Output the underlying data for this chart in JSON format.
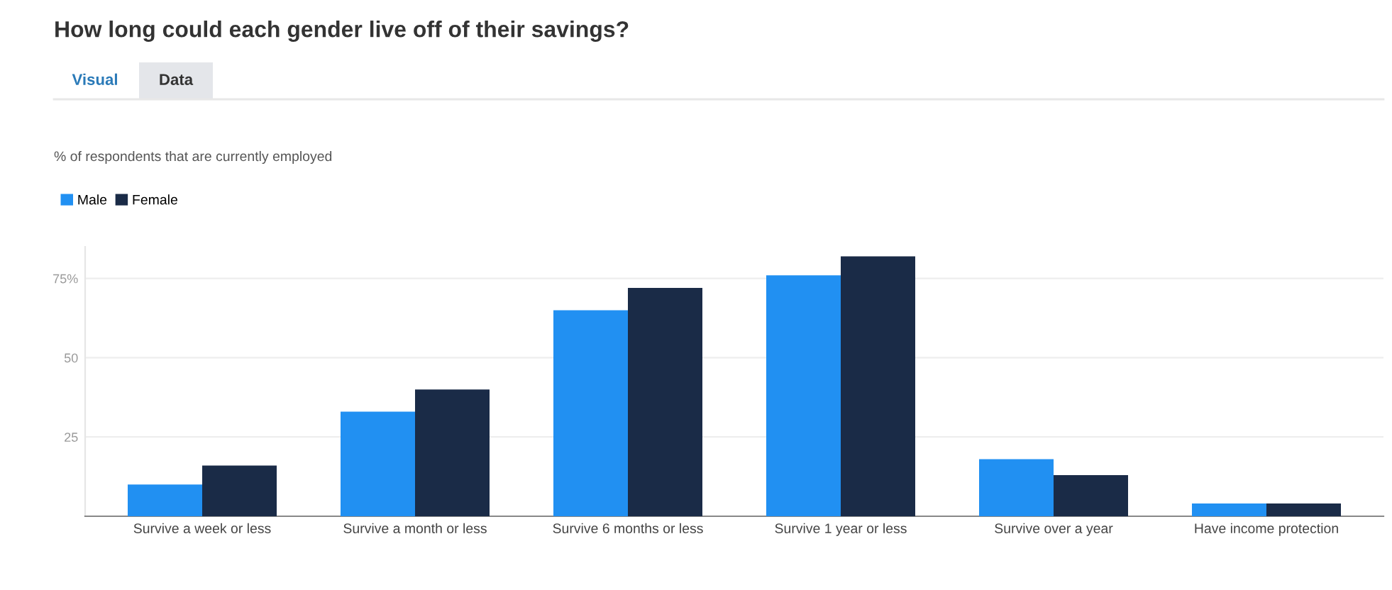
{
  "chart_data": {
    "type": "bar",
    "title": "How long could each gender live off of their savings?",
    "subtitle": "% of respondents that are currently employed",
    "annotations": [
      "Visual",
      "Data"
    ],
    "categories": [
      "Survive a week or less",
      "Survive a month or less",
      "Survive 6 months or less",
      "Survive 1 year or less",
      "Survive over a year",
      "Have income protection"
    ],
    "series": [
      {
        "name": "Male",
        "color": "#2190f2",
        "values": [
          10,
          33,
          65,
          76,
          18,
          4
        ]
      },
      {
        "name": "Female",
        "color": "#1a2b47",
        "values": [
          16,
          40,
          72,
          82,
          13,
          4
        ]
      }
    ],
    "ylim": [
      0,
      85
    ],
    "yticks": [
      25,
      50,
      {
        "value": 75,
        "label": "75%"
      }
    ],
    "grid": "y",
    "legend": "top left"
  }
}
